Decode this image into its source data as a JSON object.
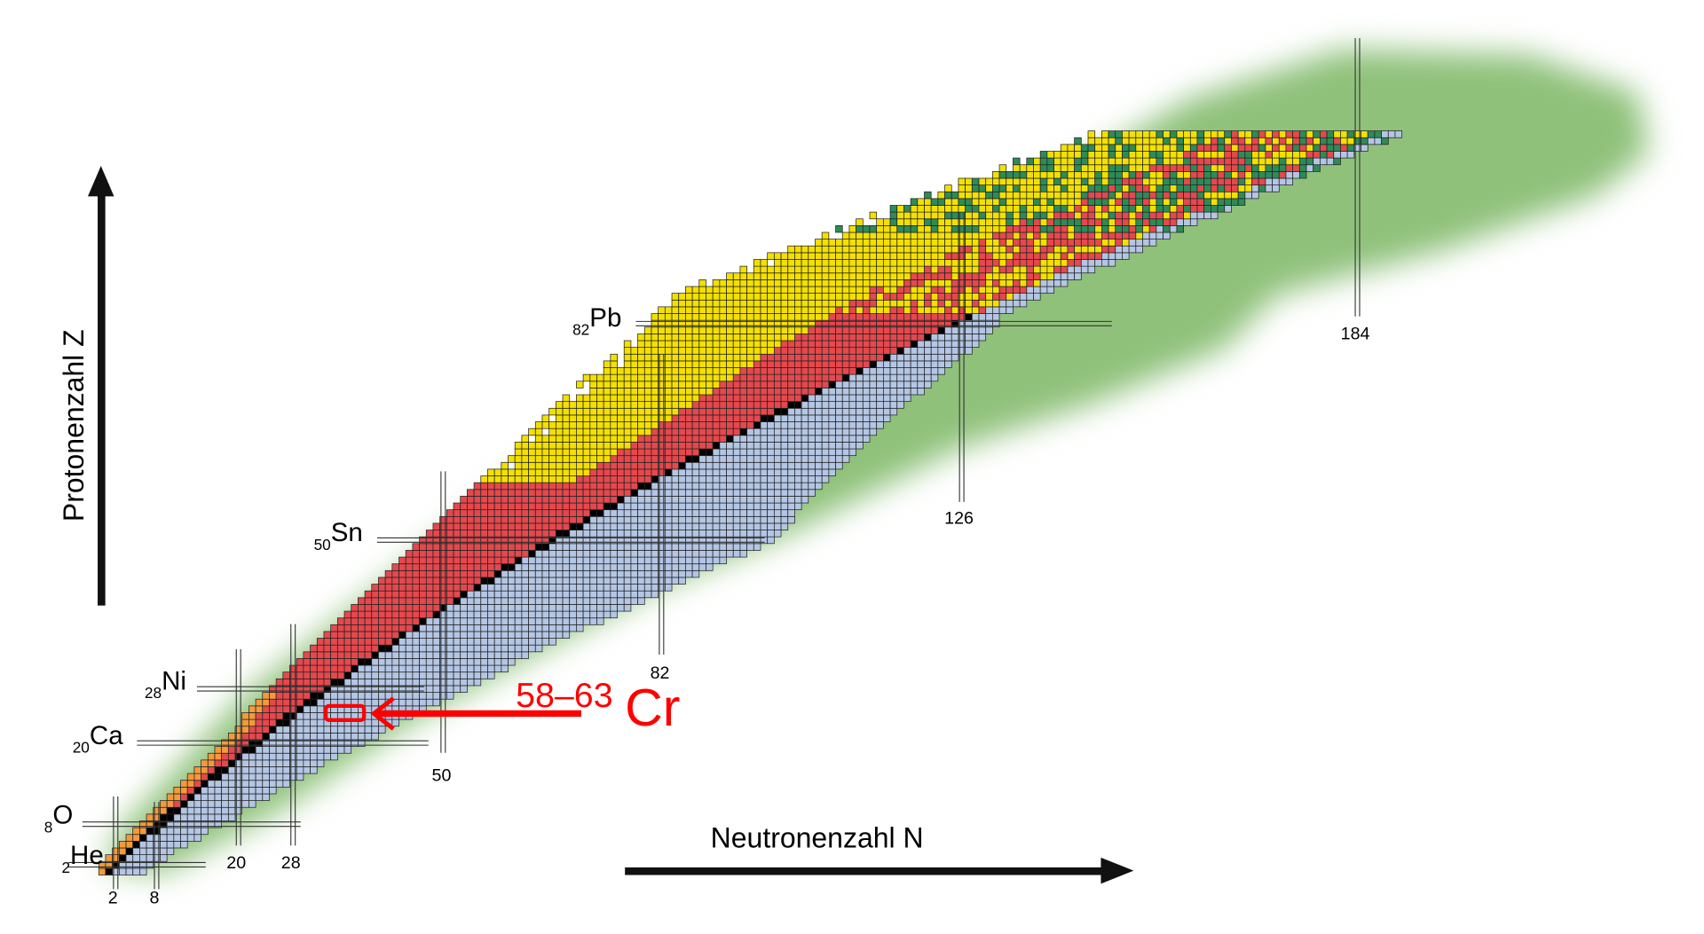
{
  "axes": {
    "y_label": "Protonenzahl Z",
    "x_label": "Neutronenzahl N"
  },
  "elements": [
    {
      "z": "2",
      "symbol": "He"
    },
    {
      "z": "8",
      "symbol": "O"
    },
    {
      "z": "20",
      "symbol": "Ca"
    },
    {
      "z": "28",
      "symbol": "Ni"
    },
    {
      "z": "50",
      "symbol": "Sn"
    },
    {
      "z": "82",
      "symbol": "Pb"
    }
  ],
  "magic_neutron_numbers": [
    "2",
    "8",
    "20",
    "28",
    "50",
    "82",
    "126",
    "184"
  ],
  "annotation": {
    "mass_range": "58–63",
    "symbol": "Cr",
    "color": "#ff0000"
  },
  "colors": {
    "stable": "#000000",
    "beta_minus": "#b4c6e4",
    "beta_plus": "#e5484d",
    "alpha": "#f4e000",
    "proton_emission": "#f39a3a",
    "fission": "#2e8b57",
    "predicted_region": "#8fc17a"
  }
}
